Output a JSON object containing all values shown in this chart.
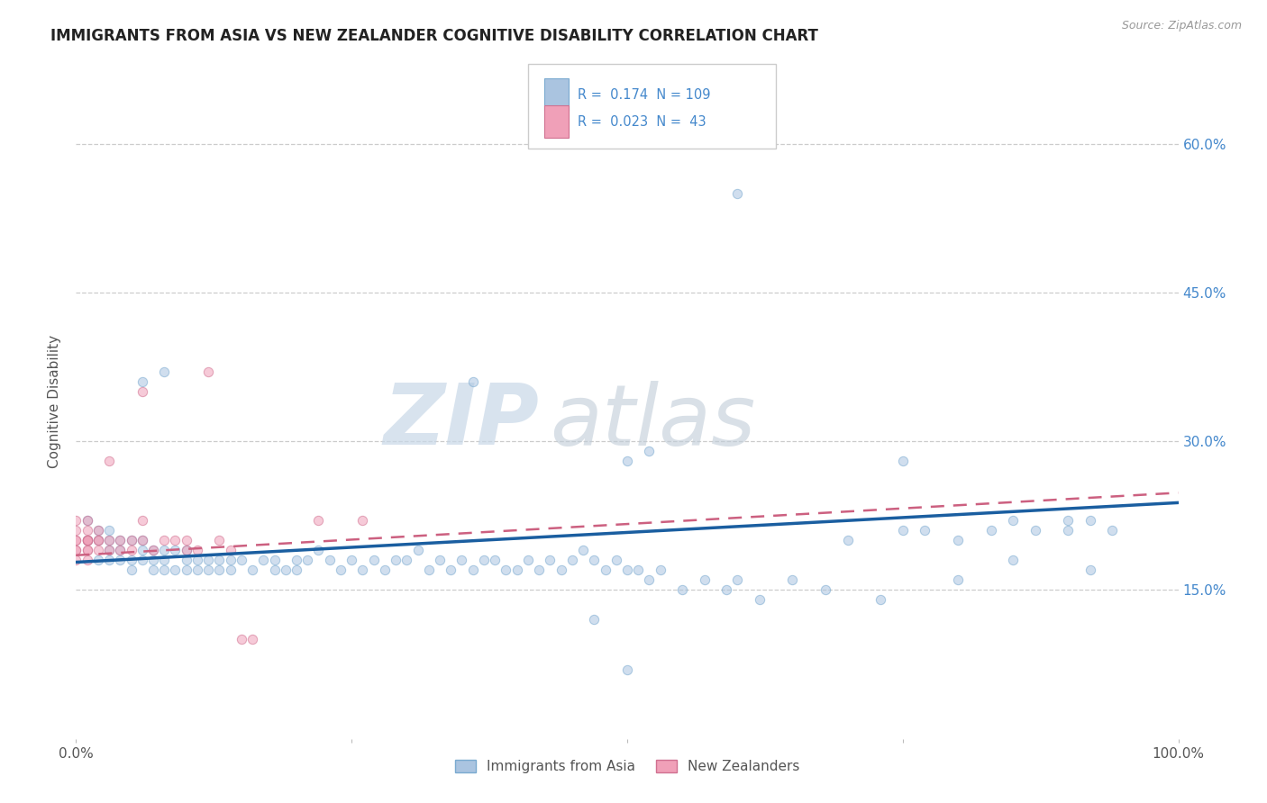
{
  "title": "IMMIGRANTS FROM ASIA VS NEW ZEALANDER COGNITIVE DISABILITY CORRELATION CHART",
  "source_text": "Source: ZipAtlas.com",
  "ylabel": "Cognitive Disability",
  "watermark_zip": "ZIP",
  "watermark_atlas": "atlas",
  "legend_entries": [
    {
      "label": "Immigrants from Asia",
      "color": "#aac4e0",
      "edgecolor": "#7aaad0",
      "R": 0.174,
      "N": 109
    },
    {
      "label": "New Zealanders",
      "color": "#f0a0b8",
      "edgecolor": "#d07090",
      "R": 0.023,
      "N": 43
    }
  ],
  "xlim": [
    0.0,
    1.0
  ],
  "ylim": [
    0.0,
    0.68
  ],
  "yticks": [
    0.15,
    0.3,
    0.45,
    0.6
  ],
  "ytick_labels": [
    "15.0%",
    "30.0%",
    "45.0%",
    "60.0%"
  ],
  "xticks": [
    0.0,
    0.25,
    0.5,
    0.75,
    1.0
  ],
  "xtick_labels": [
    "0.0%",
    "",
    "",
    "",
    "100.0%"
  ],
  "blue_scatter_x": [
    0.01,
    0.01,
    0.02,
    0.02,
    0.02,
    0.03,
    0.03,
    0.03,
    0.03,
    0.04,
    0.04,
    0.04,
    0.05,
    0.05,
    0.05,
    0.06,
    0.06,
    0.06,
    0.07,
    0.07,
    0.07,
    0.08,
    0.08,
    0.08,
    0.09,
    0.09,
    0.1,
    0.1,
    0.1,
    0.11,
    0.11,
    0.12,
    0.12,
    0.13,
    0.13,
    0.14,
    0.14,
    0.15,
    0.16,
    0.17,
    0.18,
    0.18,
    0.19,
    0.2,
    0.2,
    0.21,
    0.22,
    0.23,
    0.24,
    0.25,
    0.26,
    0.27,
    0.28,
    0.29,
    0.3,
    0.31,
    0.32,
    0.33,
    0.34,
    0.35,
    0.36,
    0.37,
    0.38,
    0.39,
    0.4,
    0.41,
    0.42,
    0.43,
    0.44,
    0.45,
    0.46,
    0.47,
    0.48,
    0.49,
    0.5,
    0.51,
    0.52,
    0.53,
    0.55,
    0.57,
    0.59,
    0.6,
    0.62,
    0.65,
    0.68,
    0.7,
    0.73,
    0.75,
    0.77,
    0.8,
    0.83,
    0.85,
    0.87,
    0.9,
    0.92,
    0.94,
    0.06,
    0.08,
    0.36,
    0.5,
    0.52,
    0.6,
    0.75,
    0.8,
    0.85,
    0.9,
    0.92,
    0.47,
    0.5
  ],
  "blue_scatter_y": [
    0.2,
    0.22,
    0.18,
    0.21,
    0.2,
    0.19,
    0.21,
    0.2,
    0.18,
    0.18,
    0.19,
    0.2,
    0.18,
    0.2,
    0.17,
    0.19,
    0.2,
    0.18,
    0.18,
    0.19,
    0.17,
    0.18,
    0.19,
    0.17,
    0.17,
    0.19,
    0.18,
    0.19,
    0.17,
    0.18,
    0.17,
    0.17,
    0.18,
    0.17,
    0.18,
    0.18,
    0.17,
    0.18,
    0.17,
    0.18,
    0.17,
    0.18,
    0.17,
    0.18,
    0.17,
    0.18,
    0.19,
    0.18,
    0.17,
    0.18,
    0.17,
    0.18,
    0.17,
    0.18,
    0.18,
    0.19,
    0.17,
    0.18,
    0.17,
    0.18,
    0.17,
    0.18,
    0.18,
    0.17,
    0.17,
    0.18,
    0.17,
    0.18,
    0.17,
    0.18,
    0.19,
    0.18,
    0.17,
    0.18,
    0.17,
    0.17,
    0.16,
    0.17,
    0.15,
    0.16,
    0.15,
    0.16,
    0.14,
    0.16,
    0.15,
    0.2,
    0.14,
    0.21,
    0.21,
    0.2,
    0.21,
    0.22,
    0.21,
    0.21,
    0.22,
    0.21,
    0.36,
    0.37,
    0.36,
    0.28,
    0.29,
    0.55,
    0.28,
    0.16,
    0.18,
    0.22,
    0.17,
    0.12,
    0.07
  ],
  "pink_scatter_x": [
    0.0,
    0.0,
    0.0,
    0.0,
    0.0,
    0.0,
    0.0,
    0.01,
    0.01,
    0.01,
    0.01,
    0.01,
    0.01,
    0.01,
    0.01,
    0.01,
    0.02,
    0.02,
    0.02,
    0.02,
    0.03,
    0.03,
    0.03,
    0.04,
    0.04,
    0.05,
    0.05,
    0.06,
    0.06,
    0.06,
    0.07,
    0.08,
    0.09,
    0.1,
    0.1,
    0.11,
    0.12,
    0.13,
    0.14,
    0.15,
    0.16,
    0.22,
    0.26
  ],
  "pink_scatter_y": [
    0.2,
    0.19,
    0.21,
    0.22,
    0.18,
    0.2,
    0.19,
    0.2,
    0.21,
    0.18,
    0.19,
    0.2,
    0.22,
    0.2,
    0.19,
    0.2,
    0.2,
    0.19,
    0.21,
    0.2,
    0.28,
    0.2,
    0.19,
    0.2,
    0.19,
    0.2,
    0.19,
    0.35,
    0.22,
    0.2,
    0.19,
    0.2,
    0.2,
    0.2,
    0.19,
    0.19,
    0.37,
    0.2,
    0.19,
    0.1,
    0.1,
    0.22,
    0.22
  ],
  "blue_line_x": [
    0.0,
    1.0
  ],
  "blue_line_y": [
    0.178,
    0.238
  ],
  "pink_line_x": [
    0.0,
    1.0
  ],
  "pink_line_y": [
    0.185,
    0.248
  ],
  "title_fontsize": 12,
  "axis_tick_color": "#555555",
  "grid_color": "#cccccc",
  "background_color": "#ffffff",
  "scatter_size": 55,
  "scatter_alpha": 0.55
}
